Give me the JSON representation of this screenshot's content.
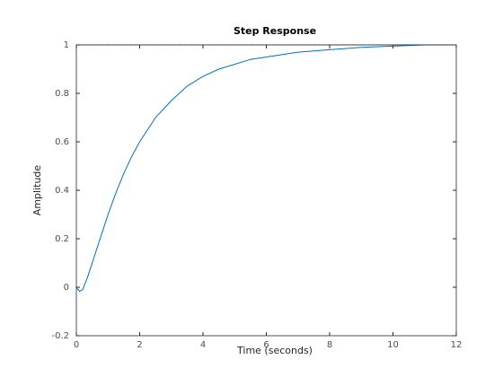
{
  "chart_data": {
    "type": "line",
    "title": "Step Response",
    "x_label": "Time (seconds)",
    "y_label": "Amplitude",
    "x": [
      0,
      0.1,
      0.2,
      0.35,
      0.5,
      0.75,
      1,
      1.25,
      1.5,
      1.75,
      2,
      2.25,
      2.5,
      3,
      3.5,
      4,
      4.5,
      5,
      5.5,
      6,
      7,
      8,
      9,
      10,
      11,
      12
    ],
    "series": [
      {
        "name": "Step Response",
        "color": "#0072bd",
        "values": [
          0,
          -0.017,
          -0.01,
          0.04,
          0.1,
          0.2,
          0.3,
          0.39,
          0.47,
          0.54,
          0.6,
          0.65,
          0.7,
          0.77,
          0.83,
          0.87,
          0.9,
          0.92,
          0.94,
          0.95,
          0.97,
          0.98,
          0.99,
          0.995,
          1.0,
          1.0
        ]
      }
    ],
    "steady_state": 1,
    "steady_state_color": "#000000",
    "xlim": [
      0,
      12
    ],
    "xticks": [
      0,
      2,
      4,
      6,
      8,
      10,
      12
    ],
    "ylim": [
      -0.2,
      1
    ],
    "yticks": [
      -0.2,
      0,
      0.2,
      0.4,
      0.6,
      0.8,
      1
    ],
    "grid": false
  }
}
